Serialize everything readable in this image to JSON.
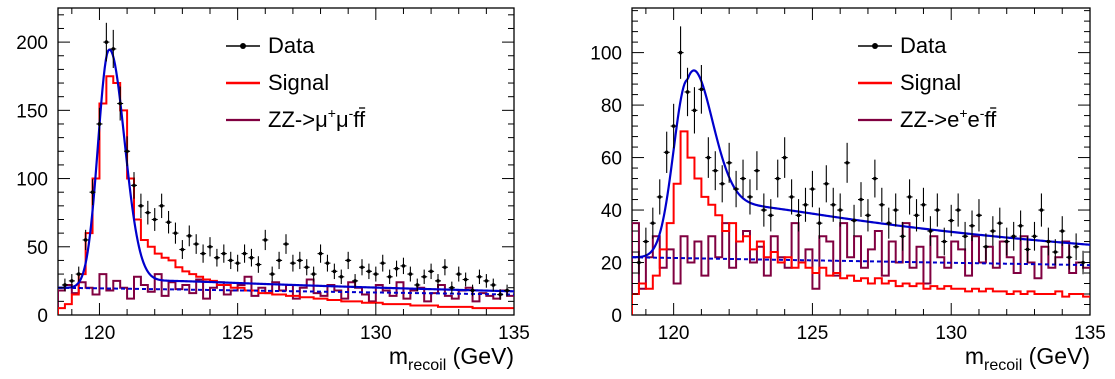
{
  "chart_data": [
    {
      "type": "line",
      "title": "",
      "xlabel": "m",
      "xlabel_sub": "recoil",
      "xlabel_unit": " (GeV)",
      "ylabel": "",
      "xlim": [
        118.5,
        135
      ],
      "ylim": [
        0,
        225
      ],
      "xticks": [
        120,
        125,
        130,
        135
      ],
      "yticks": [
        0,
        50,
        100,
        150,
        200
      ],
      "grid": false,
      "legend_position": "top-right",
      "legend": {
        "data": "Data",
        "signal": "Signal",
        "bkg_prefix": "ZZ->",
        "bkg_p1": "μ",
        "bkg_s1": "+",
        "bkg_p2": "μ",
        "bkg_s2": "-",
        "bkg_suffix": "ff"
      },
      "colors": {
        "data": "#000000",
        "signal": "#ff0000",
        "background": "#800040",
        "fit": "#0000cc",
        "fit_background": "#0000cc"
      },
      "fit": {
        "mass": 120.35,
        "peak": 175,
        "sigma_left": 0.4,
        "sigma_right": 0.55,
        "tail": 8,
        "bkg_start": 20,
        "bkg_end": 15
      },
      "series": [
        {
          "name": "Data",
          "x": [
            118.75,
            119.0,
            119.25,
            119.5,
            119.75,
            120.0,
            120.25,
            120.5,
            120.75,
            121.0,
            121.25,
            121.5,
            121.75,
            122.0,
            122.25,
            122.5,
            122.75,
            123.0,
            123.25,
            123.5,
            123.75,
            124.0,
            124.25,
            124.5,
            124.75,
            125.0,
            125.25,
            125.5,
            125.75,
            126.0,
            126.25,
            126.5,
            126.75,
            127.0,
            127.25,
            127.5,
            127.75,
            128.0,
            128.25,
            128.5,
            128.75,
            129.0,
            129.25,
            129.5,
            129.75,
            130.0,
            130.25,
            130.5,
            130.75,
            131.0,
            131.25,
            131.5,
            131.75,
            132.0,
            132.25,
            132.5,
            132.75,
            133.0,
            133.25,
            133.5,
            133.75,
            134.0,
            134.25,
            134.5,
            134.75
          ],
          "y": [
            22,
            25,
            30,
            55,
            90,
            140,
            200,
            195,
            155,
            120,
            95,
            80,
            75,
            70,
            80,
            68,
            60,
            48,
            58,
            52,
            45,
            50,
            42,
            45,
            40,
            38,
            45,
            42,
            37,
            55,
            30,
            40,
            52,
            38,
            40,
            35,
            30,
            45,
            38,
            32,
            28,
            40,
            25,
            35,
            32,
            30,
            38,
            28,
            34,
            36,
            30,
            22,
            28,
            32,
            25,
            35,
            20,
            30,
            26,
            18,
            28,
            25,
            22,
            15,
            18
          ]
        },
        {
          "name": "Signal",
          "x": [
            118.5,
            118.75,
            119.0,
            119.25,
            119.5,
            119.75,
            120.0,
            120.25,
            120.5,
            120.75,
            121.0,
            121.25,
            121.5,
            121.75,
            122.0,
            122.25,
            122.5,
            122.75,
            123.0,
            123.25,
            123.5,
            123.75,
            124.0,
            124.25,
            124.5,
            124.75,
            125.0,
            125.25,
            125.5,
            125.75,
            126.0,
            126.25,
            126.5,
            126.75,
            127.0,
            127.25,
            127.5,
            127.75,
            128.0,
            128.25,
            128.5,
            128.75,
            129.0,
            129.25,
            129.5,
            129.75,
            130.0,
            130.25,
            130.5,
            130.75,
            131.0,
            131.25,
            131.5,
            131.75,
            132.0,
            132.25,
            132.5,
            132.75,
            133.0,
            133.25,
            133.5,
            133.75,
            134.0,
            134.25,
            134.5,
            134.75
          ],
          "y": [
            5,
            8,
            15,
            30,
            60,
            100,
            155,
            175,
            170,
            150,
            100,
            70,
            55,
            50,
            45,
            42,
            40,
            35,
            32,
            30,
            28,
            26,
            25,
            22,
            22,
            20,
            20,
            18,
            18,
            16,
            16,
            15,
            15,
            14,
            14,
            13,
            13,
            12,
            12,
            11,
            11,
            10,
            10,
            10,
            9,
            9,
            9,
            8,
            8,
            8,
            8,
            7,
            7,
            7,
            7,
            6,
            6,
            6,
            6,
            6,
            5,
            5,
            5,
            5,
            5,
            5
          ]
        },
        {
          "name": "ZZ->μ+μ-ff",
          "x": [
            118.5,
            118.75,
            119.0,
            119.25,
            119.5,
            119.75,
            120.0,
            120.25,
            120.5,
            120.75,
            121.0,
            121.25,
            121.5,
            121.75,
            122.0,
            122.25,
            122.5,
            122.75,
            123.0,
            123.25,
            123.5,
            123.75,
            124.0,
            124.25,
            124.5,
            124.75,
            125.0,
            125.25,
            125.5,
            125.75,
            126.0,
            126.25,
            126.5,
            126.75,
            127.0,
            127.25,
            127.5,
            127.75,
            128.0,
            128.25,
            128.5,
            128.75,
            129.0,
            129.25,
            129.5,
            129.75,
            130.0,
            130.25,
            130.5,
            130.75,
            131.0,
            131.25,
            131.5,
            131.75,
            132.0,
            132.25,
            132.5,
            132.75,
            133.0,
            133.25,
            133.5,
            133.75,
            134.0,
            134.25,
            134.5,
            134.75
          ],
          "y": [
            18,
            22,
            16,
            24,
            20,
            15,
            30,
            18,
            25,
            20,
            12,
            28,
            22,
            17,
            30,
            14,
            24,
            19,
            22,
            16,
            26,
            12,
            20,
            24,
            15,
            18,
            22,
            28,
            14,
            20,
            16,
            24,
            18,
            22,
            12,
            20,
            26,
            16,
            14,
            22,
            18,
            12,
            24,
            20,
            15,
            10,
            22,
            18,
            14,
            24,
            12,
            18,
            20,
            10,
            16,
            22,
            14,
            12,
            18,
            20,
            10,
            16,
            14,
            12,
            18,
            14
          ]
        }
      ]
    },
    {
      "type": "line",
      "title": "",
      "xlabel": "m",
      "xlabel_sub": "recoil",
      "xlabel_unit": " (GeV)",
      "ylabel": "",
      "xlim": [
        118.5,
        135
      ],
      "ylim": [
        0,
        117
      ],
      "xticks": [
        120,
        125,
        130,
        135
      ],
      "yticks": [
        0,
        20,
        40,
        60,
        80,
        100
      ],
      "grid": false,
      "legend_position": "top-right",
      "legend": {
        "data": "Data",
        "signal": "Signal",
        "bkg_prefix": "ZZ->",
        "bkg_p1": "e",
        "bkg_s1": "+",
        "bkg_p2": "e",
        "bkg_s2": "-",
        "bkg_suffix": "ff"
      },
      "colors": {
        "data": "#000000",
        "signal": "#ff0000",
        "background": "#800040",
        "fit": "#0000cc",
        "fit_background": "#0000cc"
      },
      "fit": {
        "mass": 120.5,
        "peak": 68,
        "sigma_left": 0.5,
        "sigma_right": 0.8,
        "tail": 26,
        "bkg_start": 22,
        "bkg_end": 19
      },
      "series": [
        {
          "name": "Data",
          "x": [
            118.75,
            119.0,
            119.25,
            119.5,
            119.75,
            120.0,
            120.25,
            120.5,
            120.75,
            121.0,
            121.25,
            121.5,
            121.75,
            122.0,
            122.25,
            122.5,
            122.75,
            123.0,
            123.25,
            123.5,
            123.75,
            124.0,
            124.25,
            124.5,
            124.75,
            125.0,
            125.25,
            125.5,
            125.75,
            126.0,
            126.25,
            126.5,
            126.75,
            127.0,
            127.25,
            127.5,
            127.75,
            128.0,
            128.25,
            128.5,
            128.75,
            129.0,
            129.25,
            129.5,
            129.75,
            130.0,
            130.25,
            130.5,
            130.75,
            131.0,
            131.25,
            131.5,
            131.75,
            132.0,
            132.25,
            132.5,
            132.75,
            133.0,
            133.25,
            133.5,
            133.75,
            134.0,
            134.25,
            134.5,
            134.75
          ],
          "y": [
            20,
            28,
            35,
            45,
            62,
            72,
            100,
            85,
            78,
            86,
            60,
            55,
            50,
            58,
            48,
            52,
            45,
            55,
            40,
            38,
            52,
            60,
            45,
            38,
            42,
            48,
            35,
            50,
            42,
            40,
            58,
            36,
            44,
            38,
            52,
            42,
            35,
            40,
            30,
            45,
            38,
            42,
            32,
            40,
            28,
            36,
            40,
            30,
            34,
            38,
            26,
            32,
            35,
            28,
            30,
            34,
            25,
            30,
            40,
            28,
            24,
            32,
            22,
            26,
            20
          ]
        },
        {
          "name": "Signal",
          "x": [
            118.5,
            118.75,
            119.0,
            119.25,
            119.5,
            119.75,
            120.0,
            120.25,
            120.5,
            120.75,
            121.0,
            121.25,
            121.5,
            121.75,
            122.0,
            122.25,
            122.5,
            122.75,
            123.0,
            123.25,
            123.5,
            123.75,
            124.0,
            124.25,
            124.5,
            124.75,
            125.0,
            125.25,
            125.5,
            125.75,
            126.0,
            126.25,
            126.5,
            126.75,
            127.0,
            127.25,
            127.5,
            127.75,
            128.0,
            128.25,
            128.5,
            128.75,
            129.0,
            129.25,
            129.5,
            129.75,
            130.0,
            130.25,
            130.5,
            130.75,
            131.0,
            131.25,
            131.5,
            131.75,
            132.0,
            132.25,
            132.5,
            132.75,
            133.0,
            133.25,
            133.5,
            133.75,
            134.0,
            134.25,
            134.5,
            134.75
          ],
          "y": [
            8,
            12,
            10,
            15,
            25,
            35,
            50,
            70,
            60,
            52,
            45,
            42,
            38,
            32,
            35,
            28,
            30,
            25,
            28,
            22,
            24,
            20,
            22,
            18,
            20,
            18,
            16,
            18,
            15,
            16,
            14,
            15,
            13,
            14,
            12,
            14,
            12,
            13,
            11,
            12,
            11,
            12,
            10,
            11,
            10,
            11,
            10,
            10,
            9,
            10,
            9,
            10,
            9,
            9,
            8,
            9,
            8,
            9,
            8,
            8,
            8,
            9,
            7,
            8,
            8,
            7
          ]
        },
        {
          "name": "ZZ->e+e-ff",
          "x": [
            118.5,
            118.75,
            119.0,
            119.25,
            119.5,
            119.75,
            120.0,
            120.25,
            120.5,
            120.75,
            121.0,
            121.25,
            121.5,
            121.75,
            122.0,
            122.25,
            122.5,
            122.75,
            123.0,
            123.25,
            123.5,
            123.75,
            124.0,
            124.25,
            124.5,
            124.75,
            125.0,
            125.25,
            125.5,
            125.75,
            126.0,
            126.25,
            126.5,
            126.75,
            127.0,
            127.25,
            127.5,
            127.75,
            128.0,
            128.25,
            128.5,
            128.75,
            129.0,
            129.25,
            129.5,
            129.75,
            130.0,
            130.25,
            130.5,
            130.75,
            131.0,
            131.25,
            131.5,
            131.75,
            132.0,
            132.25,
            132.5,
            132.75,
            133.0,
            133.25,
            133.5,
            133.75,
            134.0,
            134.25,
            134.5,
            134.75
          ],
          "y": [
            35,
            10,
            22,
            30,
            18,
            25,
            12,
            30,
            20,
            28,
            15,
            30,
            22,
            35,
            18,
            28,
            32,
            20,
            26,
            15,
            30,
            22,
            18,
            35,
            20,
            25,
            10,
            30,
            28,
            15,
            35,
            22,
            30,
            18,
            25,
            32,
            15,
            28,
            20,
            35,
            18,
            26,
            12,
            30,
            22,
            18,
            28,
            25,
            15,
            30,
            20,
            26,
            18,
            28,
            22,
            16,
            30,
            20,
            14,
            26,
            18,
            22,
            28,
            16,
            20,
            18
          ]
        }
      ]
    }
  ]
}
